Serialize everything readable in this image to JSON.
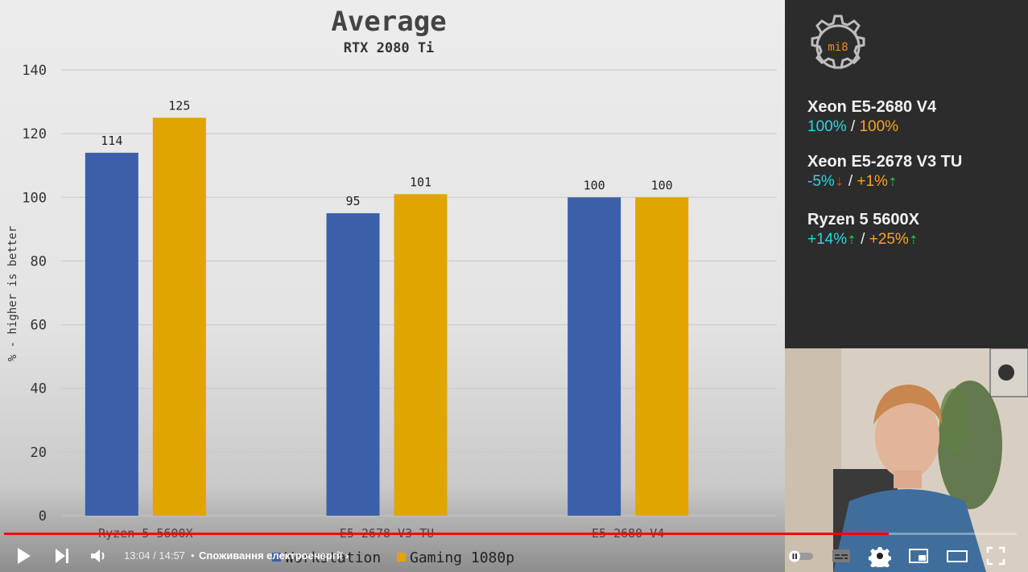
{
  "chart_data": {
    "type": "bar",
    "title": "Average",
    "subtitle": "RTX 2080 Ti",
    "ylabel": "% - higher is better",
    "xlabel": "",
    "categories": [
      "Ryzen 5 5600X",
      "E5-2678 V3 TU",
      "E5-2680 V4"
    ],
    "series": [
      {
        "name": "Workstation",
        "values": [
          114,
          95,
          100
        ],
        "color": "#3b5fa8"
      },
      {
        "name": "Gaming 1080p",
        "values": [
          125,
          101,
          100
        ],
        "color": "#e0a500"
      }
    ],
    "ylim": [
      0,
      140
    ],
    "yticks": [
      0,
      20,
      40,
      60,
      80,
      100,
      120,
      140
    ],
    "grid": true,
    "legend": "bottom"
  },
  "side_panel": {
    "logo_text": "mi8",
    "comparisons": [
      {
        "name": "Xeon E5-2680 V4",
        "workstation": "100%",
        "separator": "/",
        "gaming": "100%",
        "workstation_arrow": "",
        "gaming_arrow": ""
      },
      {
        "name": "Xeon E5-2678 V3 TU",
        "workstation": "-5%",
        "separator": "/",
        "gaming": "+1%",
        "workstation_arrow": "⇣",
        "gaming_arrow": "⇡"
      },
      {
        "name": "Ryzen 5 5600X",
        "workstation": "+14%",
        "separator": "/",
        "gaming": "+25%",
        "workstation_arrow": "⇡",
        "gaming_arrow": "⇡"
      }
    ]
  },
  "player": {
    "progress": 0.874,
    "time_current": "13:04",
    "time_total": "14:57",
    "time_display": "13:04 / 14:57",
    "bullet": "•",
    "chapter": "Споживання електроенергії",
    "chapter_chevron": "›",
    "icons": {
      "play": "play-icon",
      "next": "next-icon",
      "volume": "volume-icon",
      "autoplay": "autoplay-toggle-icon",
      "subtitles": "subtitles-icon",
      "settings": "gear-icon",
      "miniplayer": "miniplayer-icon",
      "theater": "theater-icon",
      "fullscreen": "fullscreen-icon"
    },
    "accent": "#ff0000"
  }
}
